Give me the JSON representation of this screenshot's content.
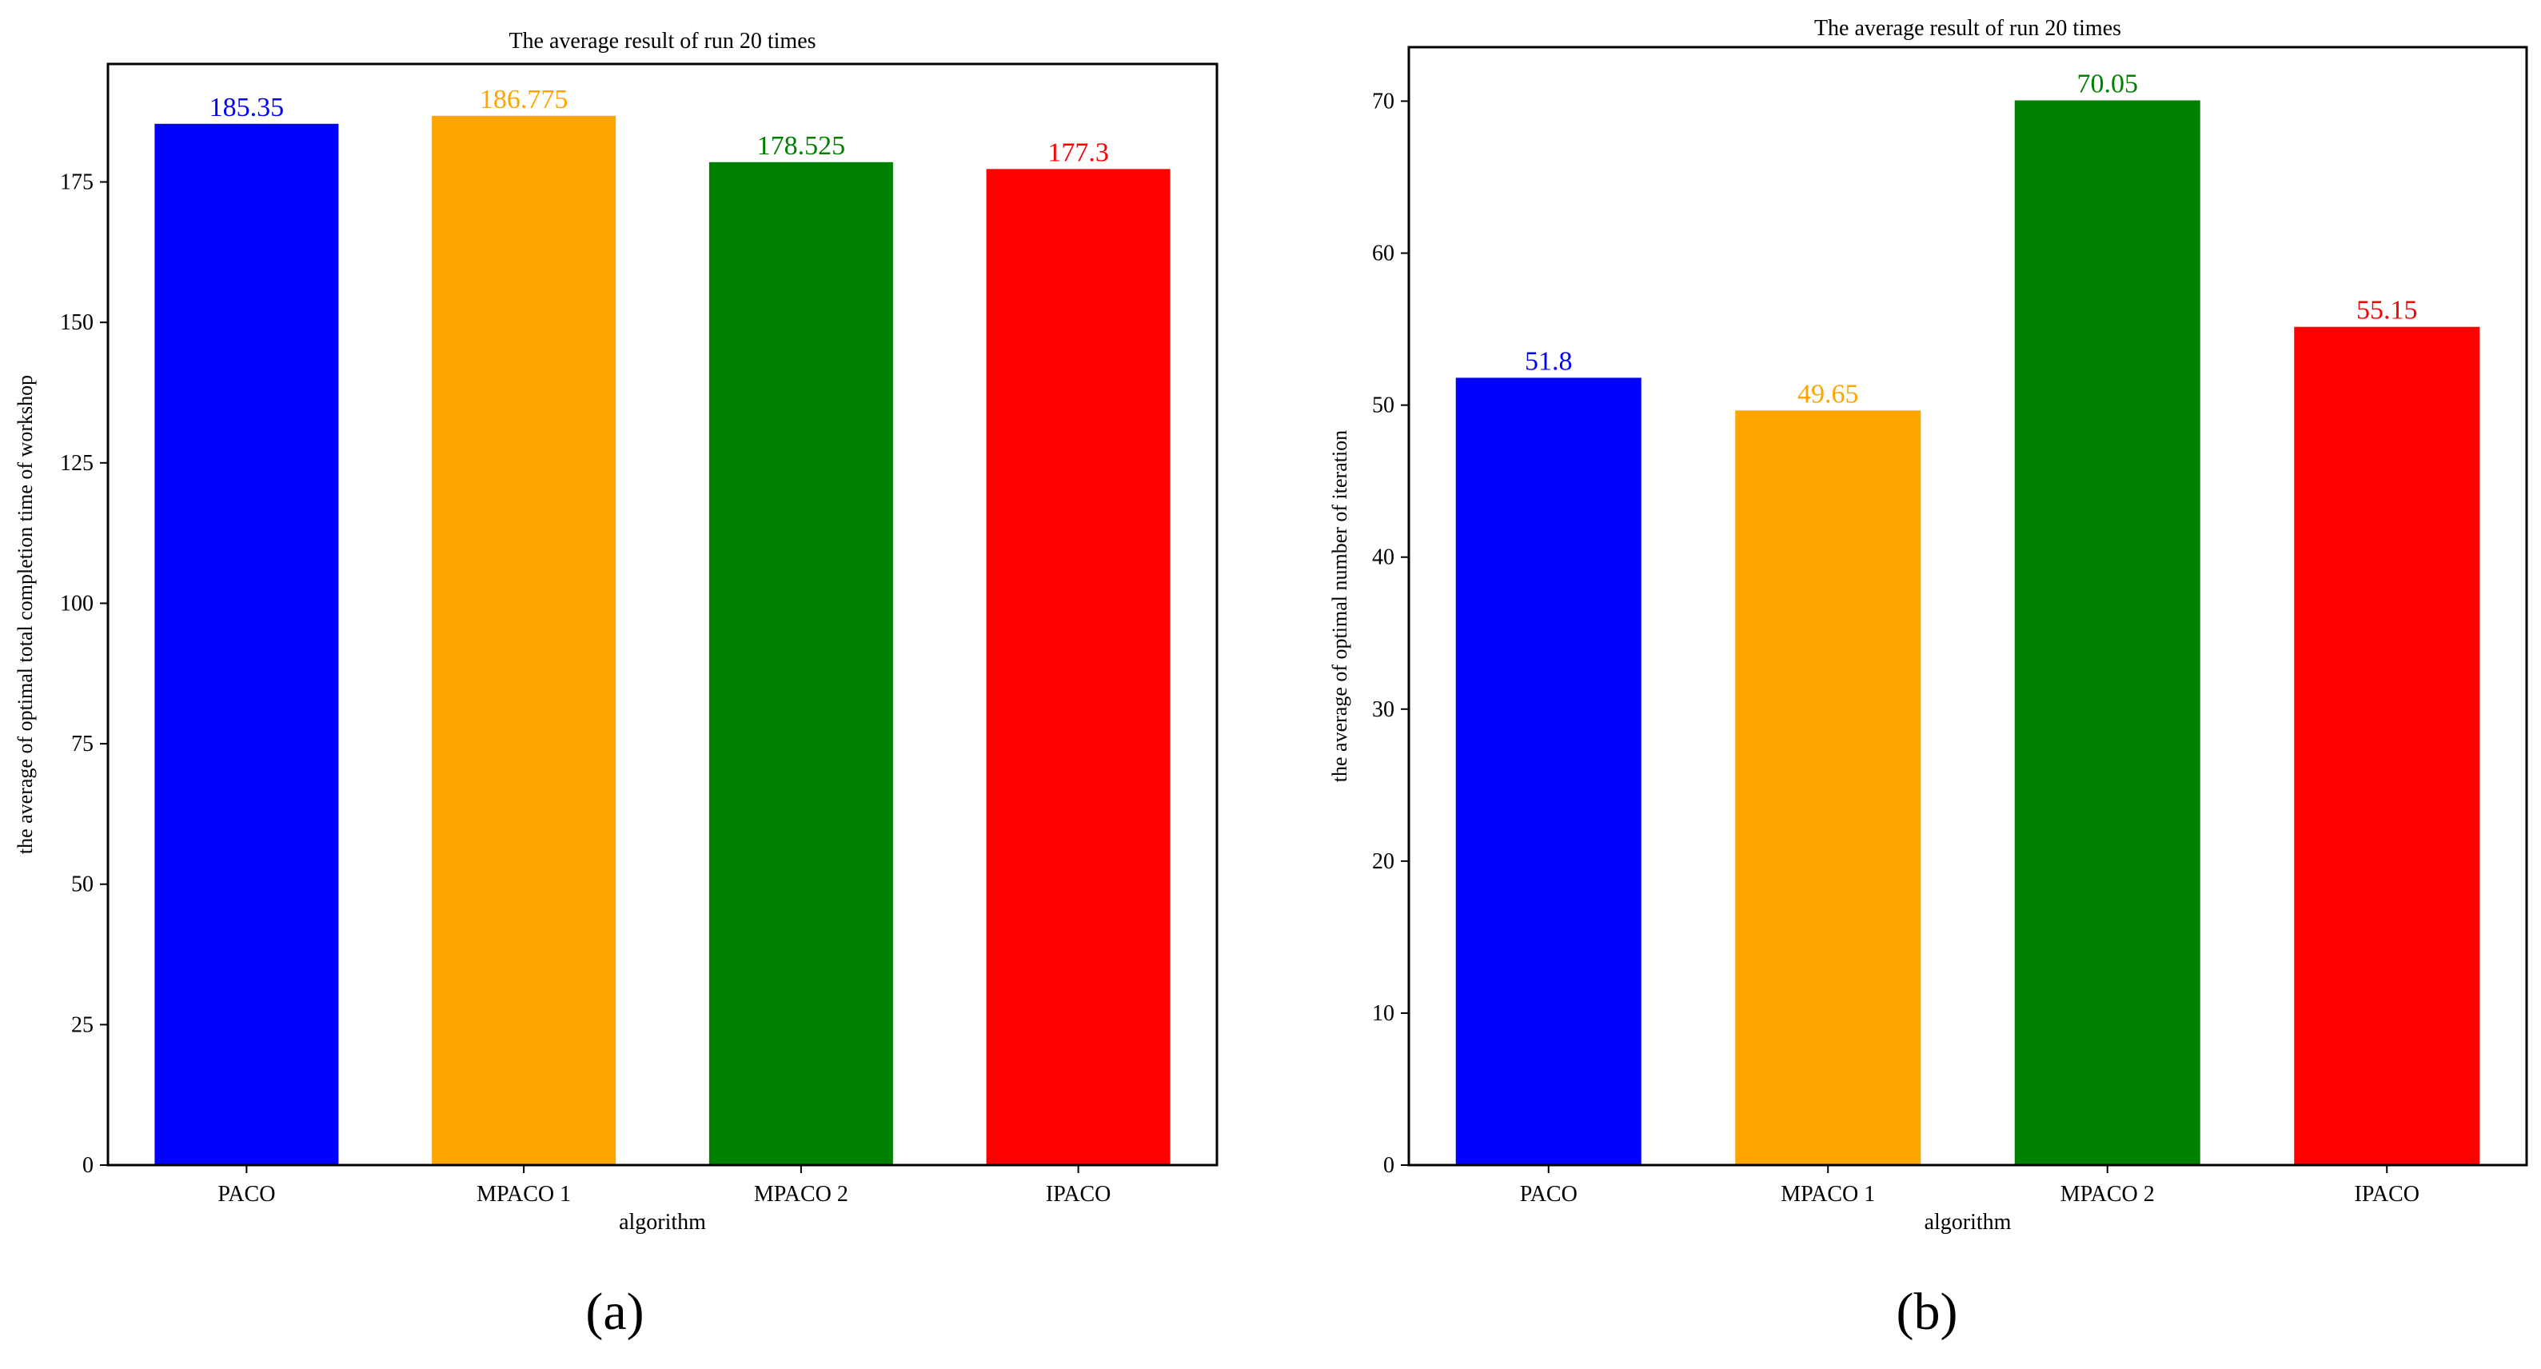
{
  "chart_data": [
    {
      "type": "bar",
      "panel": "(a)",
      "title": "The average result of run 20 times",
      "xlabel": "algorithm",
      "ylabel": "the average of optimal total completion time of workshop",
      "categories": [
        "PACO",
        "MPACO 1",
        "MPACO 2",
        "IPACO"
      ],
      "values": [
        185.35,
        186.775,
        178.525,
        177.3
      ],
      "value_labels": [
        "185.35",
        "186.775",
        "178.525",
        "177.3"
      ],
      "colors": [
        "#0000ff",
        "#ffa500",
        "#008000",
        "#ff0000"
      ],
      "ylim": [
        0,
        196
      ],
      "yticks": [
        0,
        25,
        50,
        75,
        100,
        125,
        150,
        175
      ],
      "grid": false
    },
    {
      "type": "bar",
      "panel": "(b)",
      "title": "The average result of run 20 times",
      "xlabel": "algorithm",
      "ylabel": "the average of optimal number of iteration",
      "categories": [
        "PACO",
        "MPACO 1",
        "MPACO 2",
        "IPACO"
      ],
      "values": [
        51.8,
        49.65,
        70.05,
        55.15
      ],
      "value_labels": [
        "51.8",
        "49.65",
        "70.05",
        "55.15"
      ],
      "colors": [
        "#0000ff",
        "#ffa500",
        "#008000",
        "#ff0000"
      ],
      "ylim": [
        0,
        73.55
      ],
      "yticks": [
        0,
        10,
        20,
        30,
        40,
        50,
        60,
        70
      ],
      "grid": false
    }
  ]
}
